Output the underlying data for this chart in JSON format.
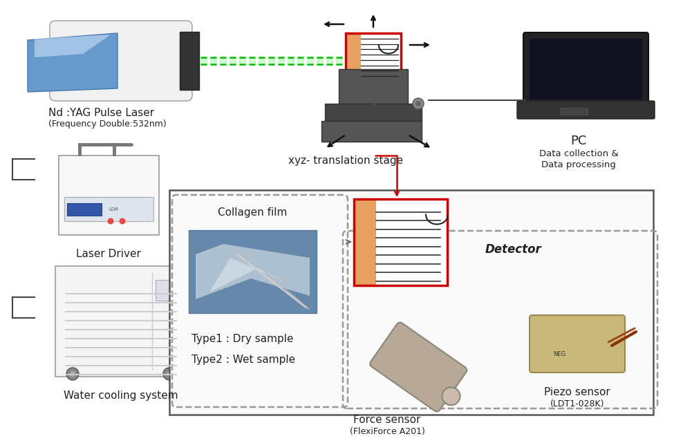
{
  "bg_color": "#ffffff",
  "laser_label1": "Nd :YAG Pulse Laser",
  "laser_label2": "(Frequency Double:532nm)",
  "stage_label": "xyz- translation stage",
  "pc_label1": "PC",
  "pc_label2": "Data collection &",
  "pc_label3": "Data processing",
  "driver_label": "Laser Driver",
  "cooling_label": "Water cooling system",
  "collagen_label": "Collagen film",
  "type1_label": "Type1 : Dry sample",
  "type2_label": "Type2 : Wet sample",
  "detector_label": "Detector",
  "force_sensor_label1": "Force sensor",
  "force_sensor_label2": "(FlexiForce A201)",
  "piezo_sensor_label1": "Piezo sensor",
  "piezo_sensor_label2": "(LDT1-028K)",
  "beam_color": "#00bb00",
  "red_box_color": "#cc0000",
  "orange_fill": "#e8a060",
  "lfs": 11,
  "sfs": 9
}
